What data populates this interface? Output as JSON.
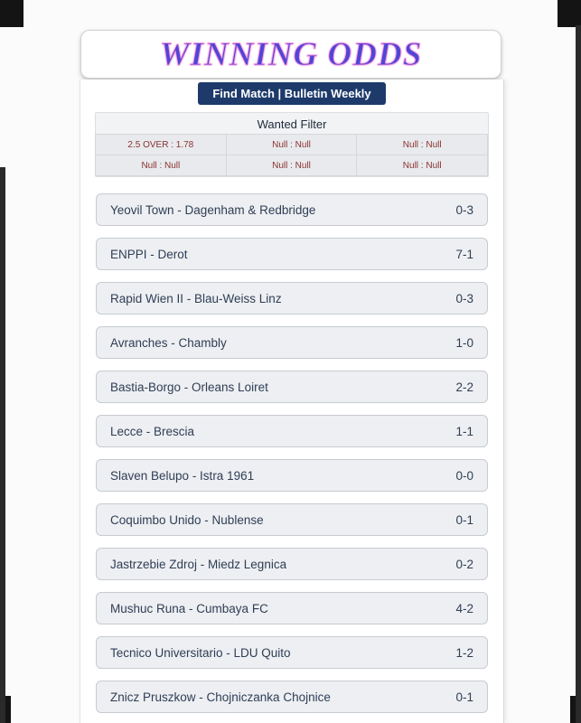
{
  "header": {
    "title": "WINNING ODDS",
    "title_color": "#4f46d6",
    "title_outline_color": "#ff9ce0"
  },
  "nav": {
    "find_match_label": "Find Match | Bulletin Weekly",
    "button_bg": "#1d3a6b"
  },
  "filter": {
    "title": "Wanted Filter",
    "value_color": "#8b3232",
    "rows": [
      [
        "2.5 OVER : 1.78",
        "Null : Null",
        "Null : Null"
      ],
      [
        "Null : Null",
        "Null : Null",
        "Null : Null"
      ]
    ]
  },
  "matches": [
    {
      "name": "Yeovil Town - Dagenham & Redbridge",
      "score": "0-3"
    },
    {
      "name": "ENPPI - Derot",
      "score": "7-1"
    },
    {
      "name": "Rapid Wien II - Blau-Weiss Linz",
      "score": "0-3"
    },
    {
      "name": "Avranches - Chambly",
      "score": "1-0"
    },
    {
      "name": "Bastia-Borgo - Orleans Loiret",
      "score": "2-2"
    },
    {
      "name": "Lecce - Brescia",
      "score": "1-1"
    },
    {
      "name": "Slaven Belupo - Istra 1961",
      "score": "0-0"
    },
    {
      "name": "Coquimbo Unido - Nublense",
      "score": "0-1"
    },
    {
      "name": "Jastrzebie Zdroj - Miedz Legnica",
      "score": "0-2"
    },
    {
      "name": "Mushuc Runa - Cumbaya FC",
      "score": "4-2"
    },
    {
      "name": "Tecnico Universitario - LDU Quito",
      "score": "1-2"
    },
    {
      "name": "Znicz Pruszkow - Chojniczanka Chojnice",
      "score": "0-1"
    }
  ],
  "row_colors": {
    "background": "#edeff2",
    "border": "#c7cbd1",
    "text": "#2f3e55"
  }
}
